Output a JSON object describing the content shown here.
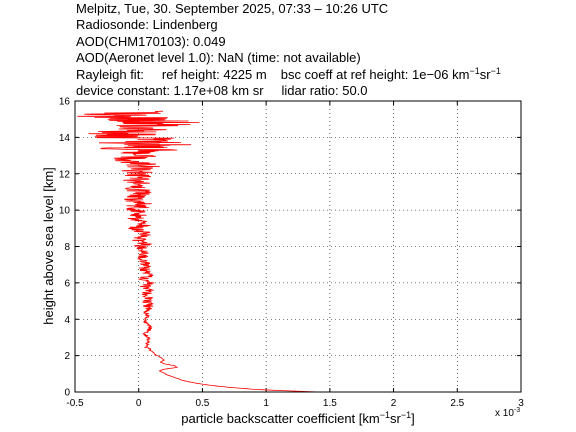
{
  "header": {
    "line1": "Melpitz, Tue, 30. September 2025, 07:33 – 10:26 UTC",
    "line2": "Radiosonde: Lindenberg",
    "line3": "AOD(CHM170103): 0.049",
    "line4": "AOD(Aeronet level 1.0): NaN   (time: not available)",
    "rayleigh_label": "Rayleigh fit:",
    "ref_height": "ref height: 4225 m",
    "bsc_coeff_prefix": "bsc coeff at ref height: 1e−06 km",
    "bsc_coeff_unit_exp": "−1",
    "bsc_coeff_unit_sr": "sr",
    "device_constant": "device constant: 1.17e+08 km sr",
    "lidar_ratio": "lidar ratio: 50.0"
  },
  "chart_data": {
    "type": "line",
    "xlabel_prefix": "particle backscatter coefficient [km",
    "xlabel_exp": "−1",
    "xlabel_sr": "sr",
    "xlabel_suffix": "]",
    "ylabel": "height above sea level [km]",
    "x_multiplier_label": "x 10",
    "x_multiplier_exp": "-3",
    "xlim": [
      -0.5,
      3
    ],
    "ylim": [
      0,
      16
    ],
    "xticks": [
      -0.5,
      0,
      0.5,
      1,
      1.5,
      2,
      2.5,
      3
    ],
    "xtick_labels": [
      "-0.5",
      "0",
      "0.5",
      "1",
      "1.5",
      "2",
      "2.5",
      "3"
    ],
    "yticks": [
      0,
      2,
      4,
      6,
      8,
      10,
      12,
      14,
      16
    ],
    "ytick_labels": [
      "0",
      "2",
      "4",
      "6",
      "8",
      "10",
      "12",
      "14",
      "16"
    ],
    "grid": true,
    "series": [
      {
        "color": "#ff0000",
        "profile_y": [
          0.0,
          0.08,
          0.15,
          0.25,
          0.35,
          0.45,
          0.55,
          0.65,
          0.75,
          0.85,
          0.95,
          1.05,
          1.15,
          1.25,
          1.35,
          1.45,
          1.55,
          1.65,
          1.75,
          1.85,
          1.95,
          2.05,
          2.15,
          2.25,
          2.4,
          2.6,
          2.8,
          3.0,
          3.2,
          3.4,
          3.6,
          3.8,
          4.0,
          4.2,
          4.4,
          4.6,
          4.8,
          5.0,
          5.2,
          5.4,
          5.6,
          5.8,
          6.0,
          6.2,
          6.4,
          6.6,
          6.8,
          7.0,
          7.2,
          7.4,
          7.6,
          7.8,
          8.0,
          8.2,
          8.4,
          8.6,
          8.8,
          9.0,
          9.2,
          9.4,
          9.6,
          9.8,
          10.0,
          10.2,
          10.4,
          10.6,
          10.8,
          11.0,
          11.2,
          11.4,
          11.6,
          11.8,
          12.0,
          12.2,
          12.4,
          12.6,
          12.8,
          13.0,
          13.2,
          13.4,
          13.6,
          13.8,
          14.0,
          14.2,
          14.4,
          14.6,
          14.8,
          15.0,
          15.2,
          15.4
        ],
        "profile_x": [
          1.42,
          1.1,
          0.9,
          0.72,
          0.58,
          0.48,
          0.4,
          0.34,
          0.3,
          0.26,
          0.22,
          0.2,
          0.16,
          0.2,
          0.3,
          0.28,
          0.2,
          0.17,
          0.2,
          0.18,
          0.16,
          0.13,
          0.12,
          0.1,
          0.07,
          0.06,
          0.08,
          0.07,
          0.05,
          0.08,
          0.09,
          0.06,
          0.05,
          0.07,
          0.05,
          0.07,
          0.08,
          0.06,
          0.08,
          0.06,
          0.09,
          0.05,
          0.08,
          0.04,
          0.07,
          0.06,
          0.04,
          0.06,
          0.05,
          0.03,
          0.05,
          0.04,
          0.02,
          0.05,
          0.0,
          0.03,
          0.02,
          -0.02,
          0.04,
          0.0,
          -0.03,
          0.02,
          0.0,
          -0.02,
          0.03,
          -0.05,
          0.0,
          0.02,
          -0.04,
          0.02,
          -0.03,
          0.0,
          -0.02,
          -0.05,
          0.02,
          0.0,
          -0.1,
          0.03,
          -0.05,
          0.0,
          0.1,
          -0.06,
          0.02,
          -0.12,
          0.1,
          0.0,
          0.2,
          0.05,
          -0.2,
          0.02
        ]
      }
    ]
  }
}
